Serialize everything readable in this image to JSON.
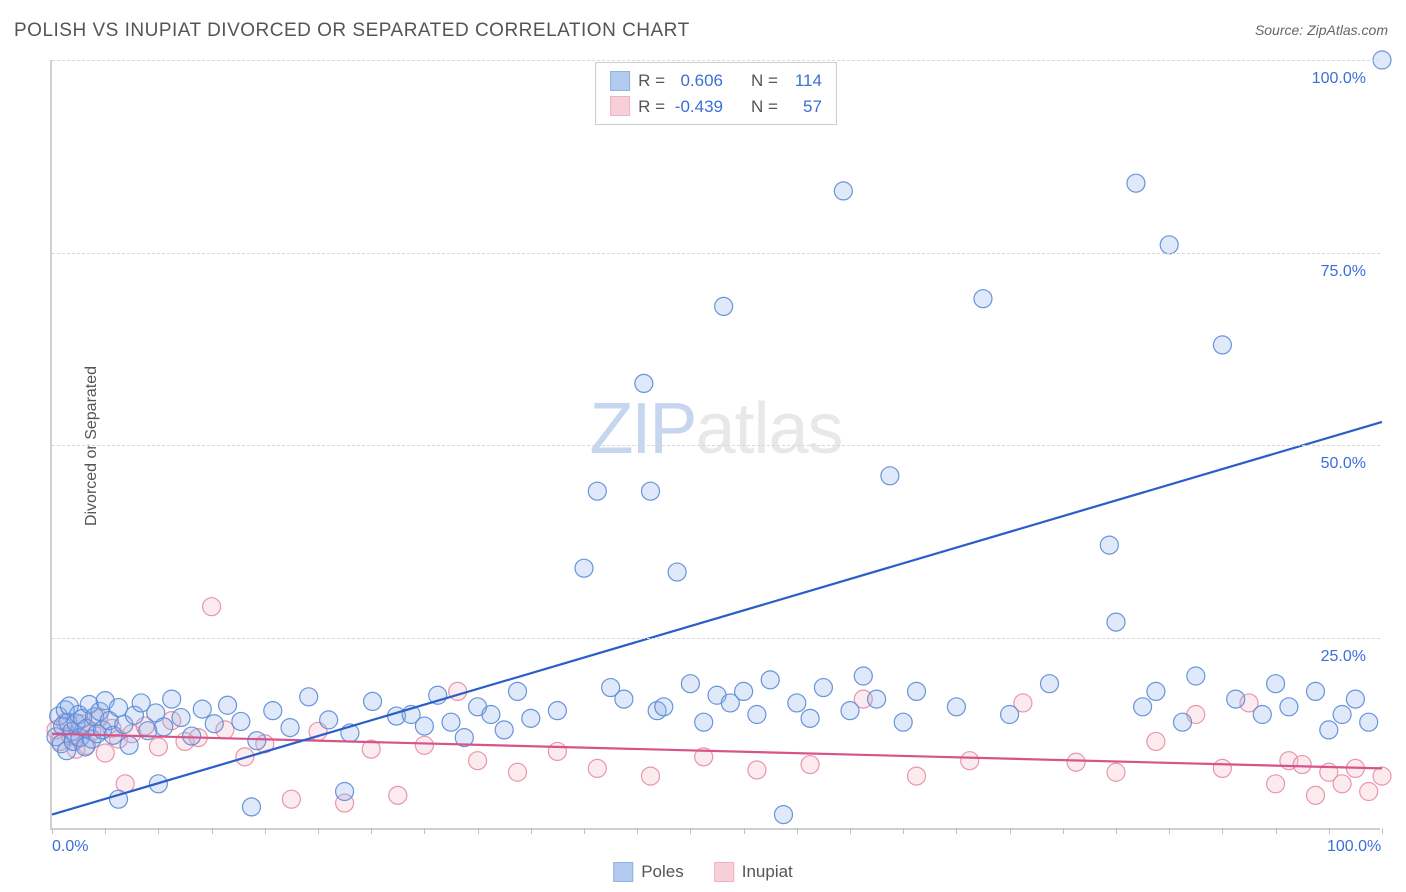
{
  "title": "POLISH VS INUPIAT DIVORCED OR SEPARATED CORRELATION CHART",
  "source_prefix": "Source: ",
  "source_name": "ZipAtlas.com",
  "y_axis_label": "Divorced or Separated",
  "watermark": {
    "part1": "ZIP",
    "part2": "atlas"
  },
  "chart": {
    "type": "scatter",
    "xlim": [
      0,
      100
    ],
    "ylim": [
      0,
      100
    ],
    "x_ticks_minor_step": 4,
    "x_tick_labels": [
      {
        "pct": 0,
        "label": "0.0%"
      },
      {
        "pct": 100,
        "label": "100.0%"
      }
    ],
    "y_gridlines": [
      25,
      50,
      75,
      100
    ],
    "y_tick_labels": [
      {
        "pct": 25,
        "label": "25.0%"
      },
      {
        "pct": 50,
        "label": "50.0%"
      },
      {
        "pct": 75,
        "label": "75.0%"
      },
      {
        "pct": 100,
        "label": "100.0%"
      }
    ],
    "background_color": "#ffffff",
    "grid_color": "#d8d8d8",
    "axis_color": "#d0d0d0",
    "tick_label_color": "#3b6fd6",
    "marker_radius": 9,
    "marker_fill_opacity": 0.28,
    "marker_stroke_opacity": 0.9,
    "marker_stroke_width": 1.2,
    "trend_line_width": 2.2
  },
  "series": {
    "poles": {
      "label": "Poles",
      "color_fill": "#8bb0e8",
      "color_stroke": "#5a8ad6",
      "trend_color": "#2a5fc9",
      "R": "0.606",
      "N": "114",
      "trend": {
        "x1": 0,
        "y1": 2,
        "x2": 100,
        "y2": 53
      },
      "points": [
        [
          0.3,
          12.1
        ],
        [
          0.5,
          14.8
        ],
        [
          0.7,
          11.2
        ],
        [
          0.8,
          13.5
        ],
        [
          1.0,
          15.6
        ],
        [
          1.1,
          10.3
        ],
        [
          1.2,
          14.0
        ],
        [
          1.3,
          16.1
        ],
        [
          1.5,
          12.8
        ],
        [
          1.6,
          11.5
        ],
        [
          1.8,
          13.9
        ],
        [
          2.0,
          15.0
        ],
        [
          2.1,
          12.0
        ],
        [
          2.3,
          14.5
        ],
        [
          2.5,
          10.8
        ],
        [
          2.6,
          13.2
        ],
        [
          2.8,
          16.3
        ],
        [
          3.0,
          11.8
        ],
        [
          3.2,
          14.7
        ],
        [
          3.4,
          12.5
        ],
        [
          3.6,
          15.4
        ],
        [
          3.8,
          13.0
        ],
        [
          4.0,
          16.8
        ],
        [
          4.3,
          14.2
        ],
        [
          4.6,
          12.3
        ],
        [
          5.0,
          15.9
        ],
        [
          5.4,
          13.7
        ],
        [
          5.8,
          11.0
        ],
        [
          6.2,
          14.9
        ],
        [
          6.7,
          16.5
        ],
        [
          7.2,
          12.9
        ],
        [
          7.8,
          15.2
        ],
        [
          8.4,
          13.4
        ],
        [
          9.0,
          17.0
        ],
        [
          9.7,
          14.6
        ],
        [
          10.5,
          12.2
        ],
        [
          11.3,
          15.7
        ],
        [
          12.2,
          13.8
        ],
        [
          13.2,
          16.2
        ],
        [
          14.2,
          14.1
        ],
        [
          15.4,
          11.6
        ],
        [
          16.6,
          15.5
        ],
        [
          17.9,
          13.3
        ],
        [
          19.3,
          17.3
        ],
        [
          20.8,
          14.3
        ],
        [
          22.4,
          12.6
        ],
        [
          24.1,
          16.7
        ],
        [
          25.9,
          14.8
        ],
        [
          27.0,
          15.0
        ],
        [
          28.0,
          13.5
        ],
        [
          29.0,
          17.5
        ],
        [
          30.0,
          14.0
        ],
        [
          31.0,
          12.0
        ],
        [
          32.0,
          16.0
        ],
        [
          33.0,
          15.0
        ],
        [
          34.0,
          13.0
        ],
        [
          35.0,
          18.0
        ],
        [
          36.0,
          14.5
        ],
        [
          38.0,
          15.5
        ],
        [
          40.0,
          34.0
        ],
        [
          41.0,
          44.0
        ],
        [
          42.0,
          18.5
        ],
        [
          43.0,
          17.0
        ],
        [
          44.5,
          58.0
        ],
        [
          45.0,
          44.0
        ],
        [
          45.5,
          15.5
        ],
        [
          46.0,
          16.0
        ],
        [
          47.0,
          33.5
        ],
        [
          48.0,
          19.0
        ],
        [
          49.0,
          14.0
        ],
        [
          50.0,
          17.5
        ],
        [
          50.5,
          68.0
        ],
        [
          51.0,
          16.5
        ],
        [
          52.0,
          18.0
        ],
        [
          53.0,
          15.0
        ],
        [
          54.0,
          19.5
        ],
        [
          55.0,
          2.0
        ],
        [
          56.0,
          16.5
        ],
        [
          57.0,
          14.5
        ],
        [
          58.0,
          18.5
        ],
        [
          59.5,
          83.0
        ],
        [
          60.0,
          15.5
        ],
        [
          61.0,
          20.0
        ],
        [
          62.0,
          17.0
        ],
        [
          63.0,
          46.0
        ],
        [
          64.0,
          14.0
        ],
        [
          65.0,
          18.0
        ],
        [
          68.0,
          16.0
        ],
        [
          70.0,
          69.0
        ],
        [
          72.0,
          15.0
        ],
        [
          75.0,
          19.0
        ],
        [
          79.5,
          37.0
        ],
        [
          80.0,
          27.0
        ],
        [
          81.5,
          84.0
        ],
        [
          82.0,
          16.0
        ],
        [
          83.0,
          18.0
        ],
        [
          84.0,
          76.0
        ],
        [
          85.0,
          14.0
        ],
        [
          86.0,
          20.0
        ],
        [
          88.0,
          63.0
        ],
        [
          89.0,
          17.0
        ],
        [
          91.0,
          15.0
        ],
        [
          92.0,
          19.0
        ],
        [
          93.0,
          16.0
        ],
        [
          95.0,
          18.0
        ],
        [
          96.0,
          13.0
        ],
        [
          97.0,
          15.0
        ],
        [
          98.0,
          17.0
        ],
        [
          99.0,
          14.0
        ],
        [
          100,
          100
        ],
        [
          5.0,
          4.0
        ],
        [
          8.0,
          6.0
        ],
        [
          15.0,
          3.0
        ],
        [
          22.0,
          5.0
        ]
      ]
    },
    "inupiat": {
      "label": "Inupiat",
      "color_fill": "#f2b6c4",
      "color_stroke": "#e88ba3",
      "trend_color": "#d6548a",
      "R": "-0.439",
      "N": "57",
      "trend": {
        "x1": 0,
        "y1": 12.5,
        "x2": 100,
        "y2": 8
      },
      "points": [
        [
          0.3,
          13.0
        ],
        [
          0.6,
          11.5
        ],
        [
          1.0,
          14.0
        ],
        [
          1.4,
          12.2
        ],
        [
          1.8,
          10.5
        ],
        [
          2.2,
          13.8
        ],
        [
          2.6,
          11.0
        ],
        [
          3.0,
          12.8
        ],
        [
          3.5,
          14.5
        ],
        [
          4.0,
          10.0
        ],
        [
          4.5,
          13.2
        ],
        [
          5.0,
          11.8
        ],
        [
          5.5,
          6.0
        ],
        [
          6.0,
          12.5
        ],
        [
          7.0,
          13.5
        ],
        [
          8.0,
          10.8
        ],
        [
          9.0,
          14.2
        ],
        [
          10.0,
          11.5
        ],
        [
          11.0,
          12.0
        ],
        [
          12.0,
          29.0
        ],
        [
          13.0,
          13.0
        ],
        [
          14.5,
          9.5
        ],
        [
          16.0,
          11.2
        ],
        [
          18.0,
          4.0
        ],
        [
          20.0,
          12.8
        ],
        [
          22.0,
          3.5
        ],
        [
          24.0,
          10.5
        ],
        [
          26.0,
          4.5
        ],
        [
          28.0,
          11.0
        ],
        [
          30.5,
          18.0
        ],
        [
          32.0,
          9.0
        ],
        [
          35.0,
          7.5
        ],
        [
          38.0,
          10.2
        ],
        [
          41.0,
          8.0
        ],
        [
          45.0,
          7.0
        ],
        [
          49.0,
          9.5
        ],
        [
          53.0,
          7.8
        ],
        [
          57.0,
          8.5
        ],
        [
          61.0,
          17.0
        ],
        [
          65.0,
          7.0
        ],
        [
          69.0,
          9.0
        ],
        [
          73.0,
          16.5
        ],
        [
          77.0,
          8.8
        ],
        [
          80.0,
          7.5
        ],
        [
          83.0,
          11.5
        ],
        [
          86.0,
          15.0
        ],
        [
          88.0,
          8.0
        ],
        [
          90.0,
          16.5
        ],
        [
          92.0,
          6.0
        ],
        [
          93.0,
          9.0
        ],
        [
          94.0,
          8.5
        ],
        [
          95.0,
          4.5
        ],
        [
          96.0,
          7.5
        ],
        [
          97.0,
          6.0
        ],
        [
          98.0,
          8.0
        ],
        [
          99.0,
          5.0
        ],
        [
          100.0,
          7.0
        ]
      ]
    }
  },
  "legend_top": {
    "R_label": "R =",
    "N_label": "N ="
  },
  "legend_bottom_order": [
    "poles",
    "inupiat"
  ]
}
